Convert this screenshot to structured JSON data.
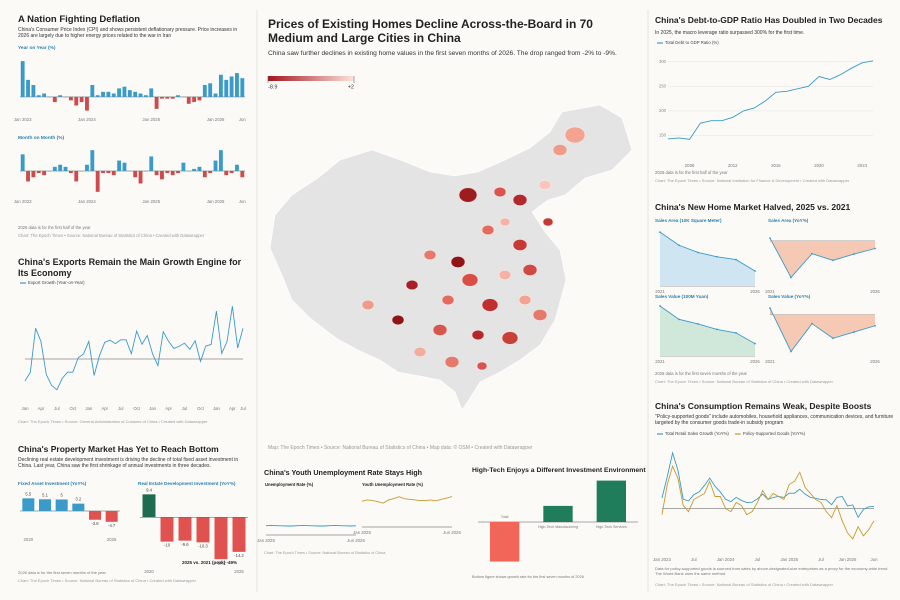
{
  "chart_data": [
    {
      "type": "bar",
      "title": "A Nation Fighting Deflation",
      "subtitle": "China's Consumer Price Index (CPI) and shows persistent deflationary pressure. Price increases in 2026 are largely due to higher energy prices related to the war in Iran",
      "label": "Year on Year (%)",
      "categories": [
        "Jan 2023",
        null,
        null,
        null,
        null,
        null,
        null,
        null,
        null,
        null,
        null,
        null,
        "Jan 2024",
        null,
        null,
        null,
        null,
        null,
        null,
        null,
        null,
        null,
        null,
        null,
        "Jan 2025",
        null,
        null,
        null,
        null,
        null,
        null,
        null,
        null,
        null,
        null,
        null,
        "Jan 2026",
        null,
        null,
        null,
        null,
        "Jun"
      ],
      "values": [
        2.1,
        1,
        0.7,
        0.1,
        0.2,
        0,
        -0.3,
        0.1,
        0,
        -0.2,
        -0.5,
        -0.3,
        -0.8,
        0.7,
        0.1,
        0.3,
        0.3,
        0.2,
        0.5,
        0.6,
        0.4,
        0.3,
        0.2,
        0.1,
        0.5,
        -0.7,
        -0.1,
        -0.1,
        -0.1,
        0.1,
        0,
        -0.4,
        -0.3,
        -0.2,
        0.7,
        0.8,
        0.2,
        1.3,
        1,
        1.2,
        1.4,
        1.1
      ],
      "color": "#3a9bc9",
      "negative_color": "#cf4a4a",
      "ylim": [
        -1,
        2.4
      ]
    },
    {
      "type": "bar",
      "label": "Month on Month (%)",
      "note": "2026 data is for the first half of the year",
      "source": "Chart: The Epoch Times • Source: National Bureau of Statistics of China • Created with Datawrapper",
      "categories": [
        "Jan 2023",
        null,
        null,
        null,
        null,
        null,
        null,
        null,
        null,
        null,
        null,
        null,
        "Jan 2024",
        null,
        null,
        null,
        null,
        null,
        null,
        null,
        null,
        null,
        null,
        null,
        "Jan 2025",
        null,
        null,
        null,
        null,
        null,
        null,
        null,
        null,
        null,
        null,
        null,
        "Jan 2026",
        null,
        null,
        null,
        null,
        "Jun"
      ],
      "values": [
        0.8,
        -0.5,
        -0.3,
        -0.1,
        -0.2,
        0,
        0.2,
        0.3,
        0.2,
        -0.1,
        -0.5,
        0,
        0.3,
        1,
        -1,
        -0.1,
        -0.1,
        -0.2,
        0.5,
        0.4,
        0,
        -0.3,
        -0.6,
        0,
        0.7,
        -0.2,
        -0.4,
        -0.1,
        -0.2,
        -0.1,
        0.4,
        0,
        0.1,
        0.2,
        -0.3,
        -0.1,
        0.5,
        1,
        -0.2,
        -0.1,
        0.3,
        -0.3
      ],
      "color": "#3a9bc9",
      "negative_color": "#cf4a4a",
      "ylim": [
        -1.2,
        1.2
      ]
    },
    {
      "type": "line",
      "title": "China's Exports Remain the Main Growth Engine for Its Economy",
      "source": "Chart: The Epoch Times • Source: General Administration of Customs of China • Created with Datawrapper",
      "categories": [
        "Jan",
        null,
        null,
        "Apr",
        null,
        null,
        "Jul",
        null,
        null,
        "Oct",
        null,
        null,
        "Jan",
        null,
        null,
        "Apr",
        null,
        null,
        "Jul",
        null,
        null,
        "Oct",
        null,
        null,
        "Jan",
        null,
        null,
        "Apr",
        null,
        null,
        "Jul",
        null,
        null,
        "Oct",
        null,
        null,
        "Jan",
        null,
        null,
        "Apr",
        null,
        "Jul"
      ],
      "series": [
        {
          "name": "Export Growth (Year-on-Year)",
          "color": "#3a9bc9",
          "values": [
            -10,
            -6,
            14,
            8,
            -7,
            -12,
            -14,
            -8.8,
            -6,
            -6,
            0.5,
            2.3,
            8,
            -7.5,
            1.5,
            7.6,
            8.6,
            7,
            8.7,
            8.7,
            2.4,
            12.7,
            6.7,
            10.7,
            2.3,
            -3,
            12.4,
            8,
            4.8,
            5.8,
            7.2,
            4.4,
            8.3,
            -1.1,
            5.9,
            6.6,
            21.8,
            2.5,
            8,
            24,
            5,
            14
          ]
        }
      ],
      "ylim": [
        -20,
        30
      ]
    },
    {
      "type": "bar",
      "title": "China's Property Market Has Yet to Reach Bottom",
      "subtitle": "Declining real estate development investment is driving the decline of total fixed asset investment in China. Last year, China saw the first shrinkage of annual investments in three decades.",
      "label": "Fixed Asset Investment (YoY%)",
      "categories": [
        "2020",
        null,
        null,
        null,
        null,
        "2025"
      ],
      "values": [
        5.5,
        5.1,
        5,
        3.2,
        -3.8,
        -4.7
      ],
      "value_labels": [
        "5.5",
        "5.1",
        "5",
        "3.2",
        "-3.8",
        "-4.7"
      ],
      "color": "#3a9bc9",
      "negative_color": "#e0524f",
      "ylim": [
        -10,
        10
      ]
    },
    {
      "type": "bar",
      "label": "Real Estate Development Investment (YoY%)",
      "annotation": "2025 vs. 2021 (peak) -49%",
      "note": "2026 data is for the first seven months of the year",
      "source": "Chart: The Epoch Times • Source: National Bureau of Statistics of China • Created with Datawrapper",
      "categories": [
        "2020",
        null,
        null,
        null,
        null,
        "2025"
      ],
      "values": [
        9.4,
        -10,
        -9.6,
        -10.3,
        -17.2,
        -14.2
      ],
      "value_labels": [
        "9.4",
        "-10",
        "-9.6",
        "-10.3",
        "-17.2",
        "-14.2"
      ],
      "color": "#1f6b4f",
      "negative_color": "#e0524f",
      "ylim": [
        -20,
        12
      ]
    },
    {
      "type": "map",
      "title": "Prices of Existing Homes Decline Across-the-Board in 70 Medium and Large Cities in China",
      "subtitle": "China saw further declines in existing home values in the first seven months of 2026. The drop ranged from -2% to -9%.",
      "legend_ticks": [
        -8.9,
        {
          "value": 2,
          "label": "+2"
        }
      ],
      "colors": [
        "#a3141c",
        "#fde4dc"
      ],
      "source": "Map: The Epoch Times • Source: National Bureau of Statistics of China • Map data: © OSM • Created with Datawrapper"
    },
    {
      "type": "line",
      "title": "China's Youth Unemployment Rate Stays High",
      "label": "Unemployment Rate (%)",
      "categories": [
        "Jan 2025",
        null,
        null,
        null,
        null,
        null,
        null,
        null,
        null,
        null,
        null,
        null,
        null,
        null,
        null,
        null,
        null,
        "Jun 2026"
      ],
      "values": [
        5.2,
        5.3,
        5.2,
        5.1,
        5,
        5,
        5.2,
        5.3,
        5.2,
        5.1,
        5,
        5,
        5.2,
        5.3,
        5.2,
        5.1,
        5,
        5.1
      ],
      "color": "#3a9bc9",
      "ylim": [
        0,
        25
      ]
    },
    {
      "type": "line",
      "label": "Youth Unemployment Rate (%)",
      "source": "Chart: The Epoch Times • Source: National Bureau of Statistics of China",
      "categories": [
        "Jan 2025",
        null,
        null,
        null,
        null,
        null,
        null,
        null,
        null,
        null,
        null,
        null,
        null,
        null,
        null,
        null,
        null,
        "Jun 2026"
      ],
      "values": [
        16.1,
        16.9,
        16.5,
        15.8,
        14.9,
        16.9,
        17.8,
        18.9,
        17.7,
        17.3,
        16.9,
        16.5,
        16.5,
        16.9,
        16.4,
        17.3,
        18.1,
        19
      ],
      "color": "#c99a2e",
      "ylim": [
        0,
        25
      ]
    },
    {
      "type": "bar",
      "title": "High-Tech Enjoys a Different Investment Environment",
      "note": "Bottom figure shows growth rate for the first seven months of 2026",
      "categories": [
        "Total",
        "High-Tech Manufacturing",
        "High-Tech Services"
      ],
      "values": [
        -17.2,
        7,
        18
      ],
      "colors": [
        "#f2665a",
        "#1f7d5c",
        "#1f7d5c"
      ],
      "ylim": [
        -20,
        20
      ]
    },
    {
      "type": "line",
      "title": "China's Debt-to-GDP Ratio Has Doubled in Two Decades",
      "subtitle": "In 2025, the macro leverage ratio surpassed 300% for the first time.",
      "note": "2026 data is for the first half of the year",
      "source": "Chart: The Epoch Times • Source: National Institution for Finance & Development • Created with Datawrapper",
      "categories": [
        null,
        null,
        "2008",
        null,
        null,
        null,
        "2012",
        null,
        null,
        null,
        "2016",
        null,
        null,
        null,
        "2020",
        null,
        null,
        null,
        "2024",
        null
      ],
      "series": [
        {
          "name": "Total Debt to GDP Ratio (%)",
          "color": "#3a9bc9",
          "values": [
            143,
            145,
            142,
            175,
            180,
            180,
            187,
            200,
            206,
            220,
            238,
            240,
            245,
            250,
            270,
            264,
            274,
            287,
            298,
            302
          ]
        }
      ],
      "ylim": [
        100,
        320
      ],
      "yticks": [
        150,
        200,
        250,
        300
      ]
    },
    {
      "type": "area",
      "title": "China's New Home Market Halved, 2025 vs. 2021",
      "label": "Sales Area (10K Square Meter)",
      "categories": [
        "2021",
        null,
        null,
        null,
        null,
        "2026"
      ],
      "values": [
        179433,
        135837,
        111735,
        97385,
        88101,
        50000
      ],
      "color": "#3a9bc9",
      "fill_color": "#cfe6f2",
      "ylim": [
        0,
        200000
      ]
    },
    {
      "type": "area",
      "label": "Sales Area (YoY%)",
      "categories": [
        "2021",
        null,
        null,
        null,
        null,
        "2026"
      ],
      "values": [
        1.9,
        -24.3,
        -8.5,
        -12.9,
        -8.7,
        -5
      ],
      "color": "#3a9bc9",
      "fill_color": "#f6c9b5",
      "ylim": [
        -30,
        10
      ]
    },
    {
      "type": "area",
      "label": "Sales Value (100M Yuan)",
      "note": "2026 data is for the first seven months of the year",
      "source": "Chart: The Epoch Times • Source: National Bureau of Statistics of China • Created with Datawrapper",
      "categories": [
        "2021",
        null,
        null,
        null,
        null,
        "2026"
      ],
      "values": [
        181930,
        133308,
        116622,
        96750,
        83937,
        45000
      ],
      "color": "#3a9bc9",
      "fill_color": "#cfe8d9",
      "ylim": [
        0,
        200000
      ]
    },
    {
      "type": "area",
      "label": "Sales Value (YoY%)",
      "categories": [
        "2021",
        null,
        null,
        null,
        null,
        "2026"
      ],
      "values": [
        4.8,
        -26.7,
        -6.5,
        -17.1,
        -12.6,
        -8
      ],
      "color": "#3a9bc9",
      "fill_color": "#f6c9b5",
      "ylim": [
        -30,
        10
      ]
    },
    {
      "type": "line",
      "title": "China's Consumption Remains Weak, Despite Boosts",
      "subtitle": "\"Policy-supported goods\" include automobiles, household appliances, communication devices, and furniture targeted by the consumer goods trade-in subsidy program",
      "note": "Data for policy-supported goods is sourced from sales by above-designated-size enterprises as a proxy for the economy-wide trend. The World Bank uses the same method.",
      "source": "Chart: The Epoch Times • Source: National Bureau of Statistics of China • Created with Datawrapper",
      "categories": [
        "Jan 2023",
        null,
        null,
        null,
        null,
        null,
        "Jul",
        null,
        null,
        null,
        null,
        null,
        "Jan 2024",
        null,
        null,
        null,
        null,
        null,
        "Jul",
        null,
        null,
        null,
        null,
        null,
        "Jan 2025",
        null,
        null,
        null,
        null,
        null,
        "Jul",
        null,
        null,
        null,
        null,
        "Jan 2026",
        null,
        null,
        null,
        null,
        "Jun"
      ],
      "series": [
        {
          "name": "Total Retail Sales Growth (YoY%)",
          "color": "#3a9bc9",
          "values": [
            3.5,
            10.6,
            18.4,
            12.7,
            3.1,
            2.5,
            4.6,
            5.5,
            7.6,
            10.1,
            7.4,
            5.5,
            3.1,
            2.3,
            3.7,
            2.7,
            2,
            2.1,
            3.2,
            4.8,
            3,
            3.7,
            4,
            3.7,
            5.1,
            5.1,
            6.4,
            4.8,
            3.7,
            3.4,
            3,
            2.9,
            1.3,
            3.7,
            4,
            0.9,
            1.2,
            -2.9,
            -0.3,
            0.6,
            0.7
          ]
        },
        {
          "name": "Policy-Supported Goods (YoY%)",
          "color": "#c99a2e",
          "values": [
            -2,
            8,
            14,
            10,
            1,
            -1,
            3,
            4,
            5,
            9,
            4,
            4,
            0,
            -1,
            2,
            1,
            -2,
            -1,
            2,
            6,
            3,
            5,
            4,
            3,
            8,
            9,
            12,
            7,
            5,
            3,
            2,
            -1,
            -3,
            1,
            -4,
            -8,
            -10,
            -6,
            -9,
            -7,
            -4
          ]
        }
      ],
      "ylim": [
        -15,
        22
      ]
    }
  ]
}
